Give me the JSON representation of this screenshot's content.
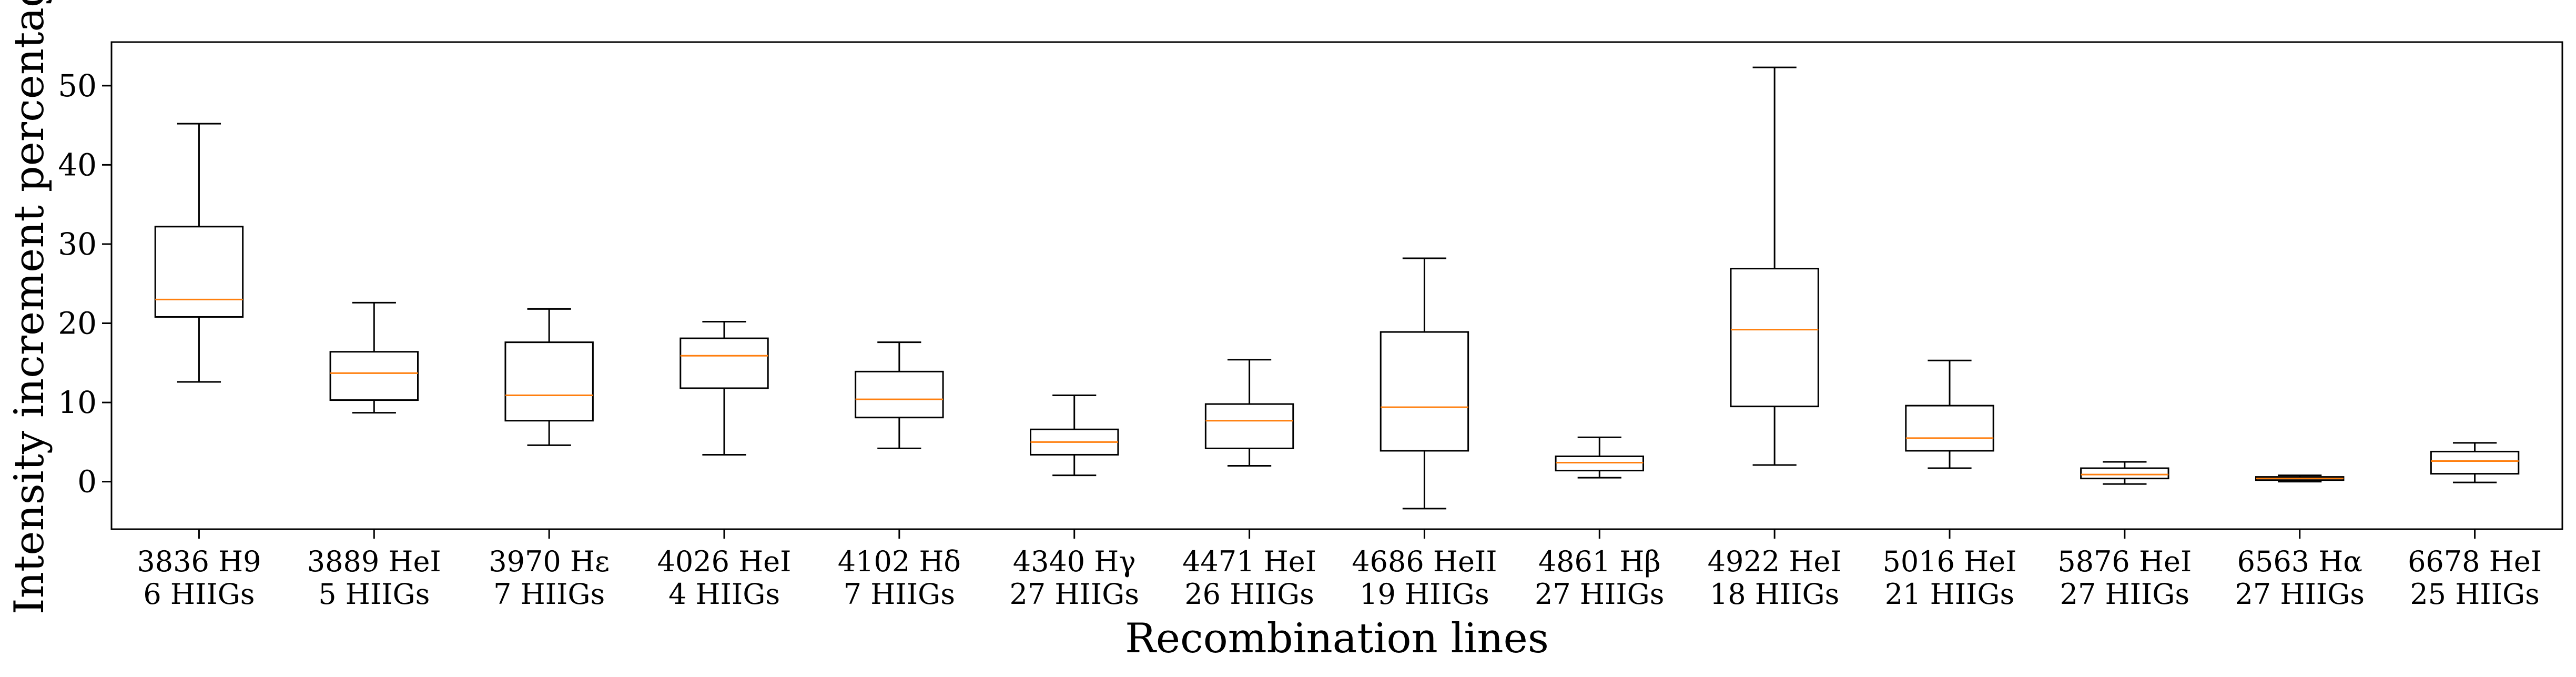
{
  "chart_data": {
    "type": "boxplot",
    "title": "",
    "xlabel": "Recombination lines",
    "ylabel": "Intensity increment percentage",
    "ylim": [
      -6,
      55.5
    ],
    "yticks": [
      0,
      10,
      20,
      30,
      40,
      50
    ],
    "grid": false,
    "categories": [
      {
        "line": "3836 H9",
        "count": "6 HIIGs",
        "whisker_low": 12.6,
        "q1": 20.8,
        "median": 23.0,
        "q3": 32.2,
        "whisker_high": 45.2
      },
      {
        "line": "3889 HeI",
        "count": "5 HIIGs",
        "whisker_low": 8.7,
        "q1": 10.3,
        "median": 13.7,
        "q3": 16.4,
        "whisker_high": 22.6
      },
      {
        "line": "3970 Hε",
        "count": "7 HIIGs",
        "whisker_low": 4.6,
        "q1": 7.7,
        "median": 10.9,
        "q3": 17.6,
        "whisker_high": 21.8
      },
      {
        "line": "4026 HeI",
        "count": "4 HIIGs",
        "whisker_low": 3.4,
        "q1": 11.8,
        "median": 15.9,
        "q3": 18.1,
        "whisker_high": 20.2
      },
      {
        "line": "4102 Hδ",
        "count": "7 HIIGs",
        "whisker_low": 4.2,
        "q1": 8.1,
        "median": 10.4,
        "q3": 13.9,
        "whisker_high": 17.6
      },
      {
        "line": "4340 Hγ",
        "count": "27 HIIGs",
        "whisker_low": 0.8,
        "q1": 3.4,
        "median": 5.0,
        "q3": 6.6,
        "whisker_high": 10.9
      },
      {
        "line": "4471 HeI",
        "count": "26 HIIGs",
        "whisker_low": 2.0,
        "q1": 4.2,
        "median": 7.7,
        "q3": 9.8,
        "whisker_high": 15.4
      },
      {
        "line": "4686 HeII",
        "count": "19 HIIGs",
        "whisker_low": -3.4,
        "q1": 3.9,
        "median": 9.4,
        "q3": 18.9,
        "whisker_high": 28.2
      },
      {
        "line": "4861 Hβ",
        "count": "27 HIIGs",
        "whisker_low": 0.5,
        "q1": 1.4,
        "median": 2.4,
        "q3": 3.2,
        "whisker_high": 5.6
      },
      {
        "line": "4922 HeI",
        "count": "18 HIIGs",
        "whisker_low": 2.1,
        "q1": 9.5,
        "median": 19.2,
        "q3": 26.9,
        "whisker_high": 52.3
      },
      {
        "line": "5016 HeI",
        "count": "21 HIIGs",
        "whisker_low": 1.7,
        "q1": 3.9,
        "median": 5.5,
        "q3": 9.6,
        "whisker_high": 15.3
      },
      {
        "line": "5876 HeI",
        "count": "27 HIIGs",
        "whisker_low": -0.3,
        "q1": 0.4,
        "median": 0.9,
        "q3": 1.7,
        "whisker_high": 2.5
      },
      {
        "line": "6563 Hα",
        "count": "27 HIIGs",
        "whisker_low": 0.0,
        "q1": 0.2,
        "median": 0.4,
        "q3": 0.6,
        "whisker_high": 0.8
      },
      {
        "line": "6678 HeI",
        "count": "25 HIIGs",
        "whisker_low": -0.1,
        "q1": 1.0,
        "median": 2.6,
        "q3": 3.8,
        "whisker_high": 4.9
      }
    ],
    "colors": {
      "box": "#000000",
      "median": "#ff7f0e",
      "background": "#ffffff"
    }
  }
}
